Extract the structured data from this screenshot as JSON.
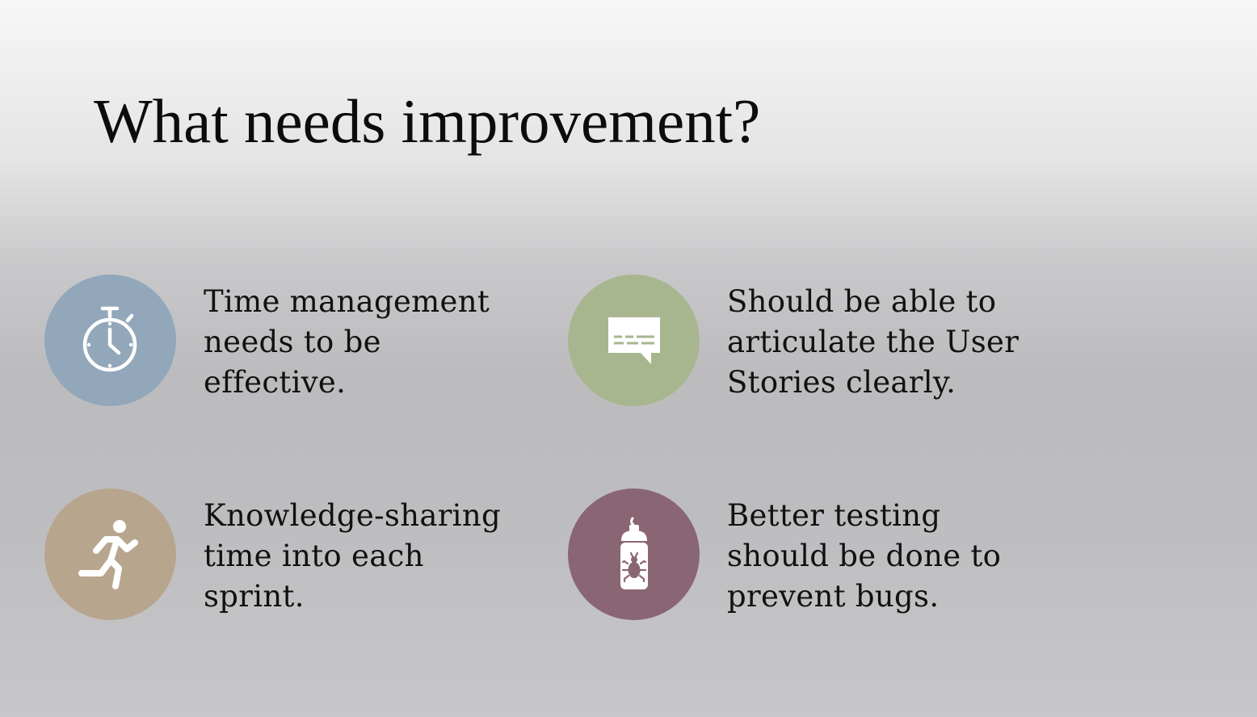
{
  "slide": {
    "title": "What needs improvement?"
  },
  "items": [
    {
      "icon": "stopwatch-icon",
      "color": "#93a7ba",
      "lines": [
        "Time management",
        "needs to be",
        "effective."
      ]
    },
    {
      "icon": "chat-bubble-icon",
      "color": "#a8b68f",
      "lines": [
        "Should be able to",
        "articulate the User",
        "Stories clearly."
      ]
    },
    {
      "icon": "running-person-icon",
      "color": "#b8a58e",
      "lines": [
        "Knowledge-sharing",
        "time into each",
        "sprint."
      ]
    },
    {
      "icon": "bug-spray-icon",
      "color": "#8a6573",
      "lines": [
        "Better testing",
        "should be done to",
        "prevent bugs."
      ]
    }
  ]
}
